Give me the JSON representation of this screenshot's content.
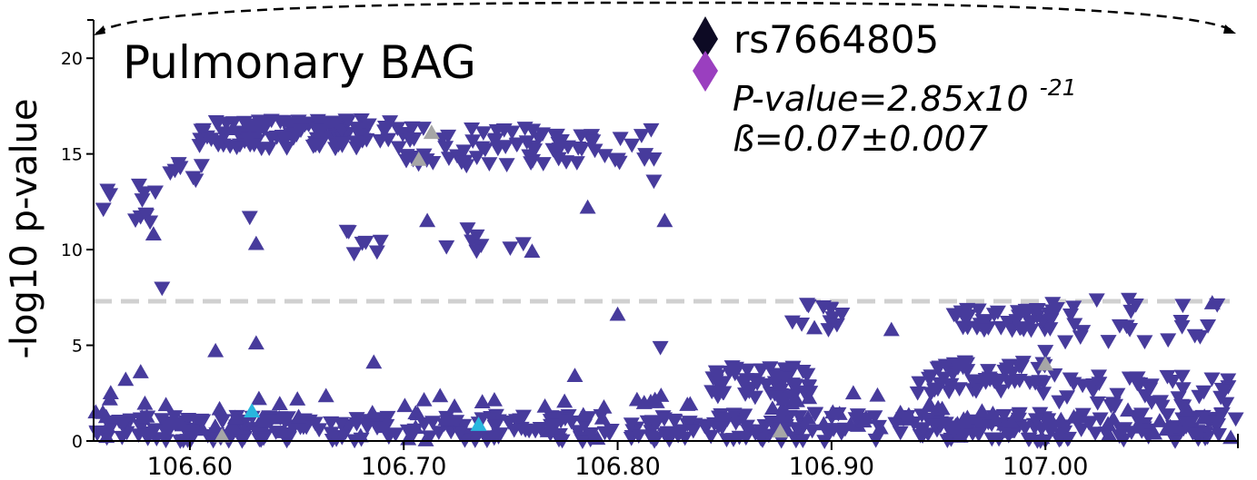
{
  "chart_data": {
    "type": "scatter",
    "title": "Pulmonary BAG",
    "xlabel": "",
    "ylabel": "-log10 p-value",
    "xlim": [
      106.555,
      107.09
    ],
    "ylim": [
      0,
      22
    ],
    "xticks": [
      "106.60",
      "106.70",
      "106.80",
      "106.90",
      "107.00"
    ],
    "xtick_values": [
      106.6,
      106.7,
      106.8,
      106.9,
      107.0
    ],
    "yticks": [
      "0",
      "5",
      "10",
      "15",
      "20"
    ],
    "ytick_values": [
      0,
      5,
      10,
      15,
      20
    ],
    "significance_line": 7.3,
    "legend": {
      "lead_snp": "rs7664805",
      "pvalue_prefix": "P-value=2.85x10",
      "pvalue_exp": "-21",
      "beta": "ß=0.07±0.007"
    },
    "colors": {
      "main": "#473b9c",
      "cyan": "#29b6de",
      "gray": "#a6a6a6",
      "lead_top": "#0d0a24",
      "lead_bottom": "#9a3fbf",
      "sigline": "#d0d0d0"
    },
    "clusters": [
      {
        "x0": 106.556,
        "x1": 106.588,
        "y0": 11.0,
        "y1": 13.4,
        "n": 12,
        "shape": "down"
      },
      {
        "x0": 106.588,
        "x1": 106.606,
        "y0": 13.2,
        "y1": 15.8,
        "n": 8,
        "shape": "down"
      },
      {
        "x0": 106.604,
        "x1": 106.7,
        "y0": 15.3,
        "y1": 16.8,
        "n": 120,
        "shape": "down"
      },
      {
        "x0": 106.7,
        "x1": 106.79,
        "y0": 14.4,
        "y1": 16.4,
        "n": 70,
        "shape": "down"
      },
      {
        "x0": 106.79,
        "x1": 106.818,
        "y0": 13.2,
        "y1": 16.4,
        "n": 12,
        "shape": "down"
      },
      {
        "x0": 106.66,
        "x1": 106.76,
        "y0": 9.8,
        "y1": 11.2,
        "n": 16,
        "shape": "down"
      },
      {
        "x0": 106.556,
        "x1": 106.63,
        "y0": 0.0,
        "y1": 1.3,
        "n": 60,
        "shape": "down"
      },
      {
        "x0": 106.63,
        "x1": 106.84,
        "y0": 0.0,
        "y1": 1.4,
        "n": 150,
        "shape": "down"
      },
      {
        "x0": 106.84,
        "x1": 107.09,
        "y0": 0.0,
        "y1": 1.5,
        "n": 190,
        "shape": "down"
      },
      {
        "x0": 106.84,
        "x1": 106.89,
        "y0": 2.3,
        "y1": 3.9,
        "n": 60,
        "shape": "down"
      },
      {
        "x0": 106.88,
        "x1": 106.905,
        "y0": 5.8,
        "y1": 7.3,
        "n": 12,
        "shape": "down"
      },
      {
        "x0": 106.94,
        "x1": 107.0,
        "y0": 2.5,
        "y1": 4.3,
        "n": 60,
        "shape": "down"
      },
      {
        "x0": 106.955,
        "x1": 107.005,
        "y0": 5.8,
        "y1": 6.9,
        "n": 45,
        "shape": "down"
      },
      {
        "x0": 107.0,
        "x1": 107.088,
        "y0": 5.2,
        "y1": 7.5,
        "n": 25,
        "shape": "down"
      },
      {
        "x0": 107.0,
        "x1": 107.088,
        "y0": 1.8,
        "y1": 3.5,
        "n": 45,
        "shape": "down"
      },
      {
        "x0": 106.556,
        "x1": 106.84,
        "y0": 0.0,
        "y1": 2.5,
        "n": 55,
        "shape": "up"
      },
      {
        "x0": 106.87,
        "x1": 106.96,
        "y0": 0.3,
        "y1": 2.5,
        "n": 30,
        "shape": "up"
      },
      {
        "x0": 106.96,
        "x1": 107.088,
        "y0": 0.0,
        "y1": 1.8,
        "n": 30,
        "shape": "up"
      }
    ],
    "points": [
      {
        "x": 106.556,
        "y": 1.5,
        "shape": "up"
      },
      {
        "x": 106.563,
        "y": 2.5,
        "shape": "up"
      },
      {
        "x": 106.57,
        "y": 3.2,
        "shape": "up"
      },
      {
        "x": 106.577,
        "y": 3.6,
        "shape": "up"
      },
      {
        "x": 106.583,
        "y": 10.8,
        "shape": "up"
      },
      {
        "x": 106.587,
        "y": 8.0,
        "shape": "down"
      },
      {
        "x": 106.612,
        "y": 4.7,
        "shape": "up"
      },
      {
        "x": 106.62,
        "y": 16.3,
        "shape": "up"
      },
      {
        "x": 106.628,
        "y": 11.7,
        "shape": "down"
      },
      {
        "x": 106.631,
        "y": 10.3,
        "shape": "up"
      },
      {
        "x": 106.631,
        "y": 5.1,
        "shape": "up"
      },
      {
        "x": 106.686,
        "y": 4.1,
        "shape": "up"
      },
      {
        "x": 106.711,
        "y": 11.5,
        "shape": "up"
      },
      {
        "x": 106.76,
        "y": 9.9,
        "shape": "up"
      },
      {
        "x": 106.766,
        "y": 1.8,
        "shape": "up"
      },
      {
        "x": 106.78,
        "y": 3.4,
        "shape": "up"
      },
      {
        "x": 106.786,
        "y": 12.2,
        "shape": "up"
      },
      {
        "x": 106.8,
        "y": 6.6,
        "shape": "up"
      },
      {
        "x": 106.82,
        "y": 4.9,
        "shape": "down"
      },
      {
        "x": 106.822,
        "y": 11.5,
        "shape": "up"
      },
      {
        "x": 106.892,
        "y": 5.9,
        "shape": "up"
      },
      {
        "x": 106.928,
        "y": 5.8,
        "shape": "up"
      },
      {
        "x": 107.0,
        "y": 4.7,
        "shape": "down"
      },
      {
        "x": 107.04,
        "y": 6.8,
        "shape": "down"
      },
      {
        "x": 107.078,
        "y": 7.2,
        "shape": "up"
      }
    ],
    "special_points": [
      {
        "x": 106.629,
        "y": 1.55,
        "shape": "up",
        "color": "cyan"
      },
      {
        "x": 106.735,
        "y": 0.85,
        "shape": "up",
        "color": "cyan"
      },
      {
        "x": 106.713,
        "y": 16.1,
        "shape": "up",
        "color": "gray"
      },
      {
        "x": 106.707,
        "y": 14.7,
        "shape": "up",
        "color": "gray"
      },
      {
        "x": 106.615,
        "y": 0.25,
        "shape": "up",
        "color": "gray"
      },
      {
        "x": 106.876,
        "y": 0.5,
        "shape": "up",
        "color": "gray"
      },
      {
        "x": 107.0,
        "y": 4.0,
        "shape": "up",
        "color": "gray"
      }
    ]
  }
}
